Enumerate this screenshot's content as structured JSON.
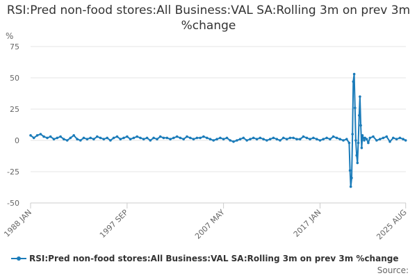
{
  "chart_data": {
    "type": "line",
    "title": "RSI:Pred non-food stores:All Business:VAL SA:Rolling 3m on prev 3m %change",
    "ylabel": "%",
    "xlabel": "",
    "ylim": [
      -50,
      75
    ],
    "yticks": [
      75,
      50,
      25,
      0,
      -25,
      -50
    ],
    "xlim": [
      1988.0,
      2025.6
    ],
    "xticks": [
      {
        "label": "1988 JAN",
        "x": 1988.0
      },
      {
        "label": "1997 SEP",
        "x": 1997.67
      },
      {
        "label": "2007 MAY",
        "x": 2007.33
      },
      {
        "label": "2017 JAN",
        "x": 2017.0
      },
      {
        "label": "2025 AUG",
        "x": 2025.58
      }
    ],
    "grid": true,
    "legend": "bottom",
    "series": [
      {
        "name": "RSI:Pred non-food stores:All Business:VAL SA:Rolling 3m on prev 3m %change",
        "color": "#1a7bb9",
        "x": [
          1988.0,
          1988.33,
          1988.67,
          1989.0,
          1989.33,
          1989.67,
          1990.0,
          1990.33,
          1990.67,
          1991.0,
          1991.33,
          1991.67,
          1992.0,
          1992.33,
          1992.67,
          1993.0,
          1993.33,
          1993.67,
          1994.0,
          1994.33,
          1994.67,
          1995.0,
          1995.33,
          1995.67,
          1996.0,
          1996.33,
          1996.67,
          1997.0,
          1997.33,
          1997.67,
          1998.0,
          1998.33,
          1998.67,
          1999.0,
          1999.33,
          1999.67,
          2000.0,
          2000.33,
          2000.67,
          2001.0,
          2001.33,
          2001.67,
          2002.0,
          2002.33,
          2002.67,
          2003.0,
          2003.33,
          2003.67,
          2004.0,
          2004.33,
          2004.67,
          2005.0,
          2005.33,
          2005.67,
          2006.0,
          2006.33,
          2006.67,
          2007.0,
          2007.33,
          2007.67,
          2008.0,
          2008.33,
          2008.67,
          2009.0,
          2009.33,
          2009.67,
          2010.0,
          2010.33,
          2010.67,
          2011.0,
          2011.33,
          2011.67,
          2012.0,
          2012.33,
          2012.67,
          2013.0,
          2013.33,
          2013.67,
          2014.0,
          2014.33,
          2014.67,
          2015.0,
          2015.33,
          2015.67,
          2016.0,
          2016.33,
          2016.67,
          2017.0,
          2017.33,
          2017.67,
          2018.0,
          2018.33,
          2018.67,
          2019.0,
          2019.33,
          2019.67,
          2019.92,
          2020.0,
          2020.08,
          2020.17,
          2020.25,
          2020.33,
          2020.42,
          2020.5,
          2020.58,
          2020.67,
          2020.75,
          2020.83,
          2020.92,
          2021.0,
          2021.08,
          2021.17,
          2021.25,
          2021.33,
          2021.42,
          2021.5,
          2021.67,
          2021.83,
          2022.0,
          2022.33,
          2022.67,
          2023.0,
          2023.33,
          2023.67,
          2024.0,
          2024.33,
          2024.67,
          2025.0,
          2025.33,
          2025.58
        ],
        "values": [
          4,
          2,
          4,
          5,
          3,
          2,
          3,
          1,
          2,
          3,
          1,
          0,
          2,
          4,
          1,
          0,
          2,
          1,
          2,
          1,
          3,
          2,
          1,
          2,
          0,
          2,
          3,
          1,
          2,
          3,
          1,
          2,
          3,
          2,
          1,
          2,
          0,
          2,
          1,
          3,
          2,
          2,
          1,
          2,
          3,
          2,
          1,
          3,
          2,
          1,
          2,
          2,
          3,
          2,
          1,
          0,
          1,
          2,
          1,
          2,
          0,
          -1,
          0,
          1,
          2,
          0,
          1,
          2,
          1,
          2,
          1,
          0,
          1,
          2,
          1,
          0,
          2,
          1,
          2,
          2,
          1,
          1,
          3,
          2,
          1,
          2,
          1,
          0,
          1,
          2,
          1,
          3,
          2,
          1,
          0,
          1,
          -2,
          -24,
          -37,
          -30,
          5,
          47,
          53,
          26,
          0,
          -12,
          -18,
          -2,
          20,
          35,
          12,
          -6,
          4,
          2,
          0,
          2,
          1,
          -2,
          2,
          3,
          0,
          1,
          2,
          3,
          -1,
          2,
          1,
          2,
          1,
          0
        ]
      }
    ]
  },
  "source": {
    "label": "Source:"
  }
}
